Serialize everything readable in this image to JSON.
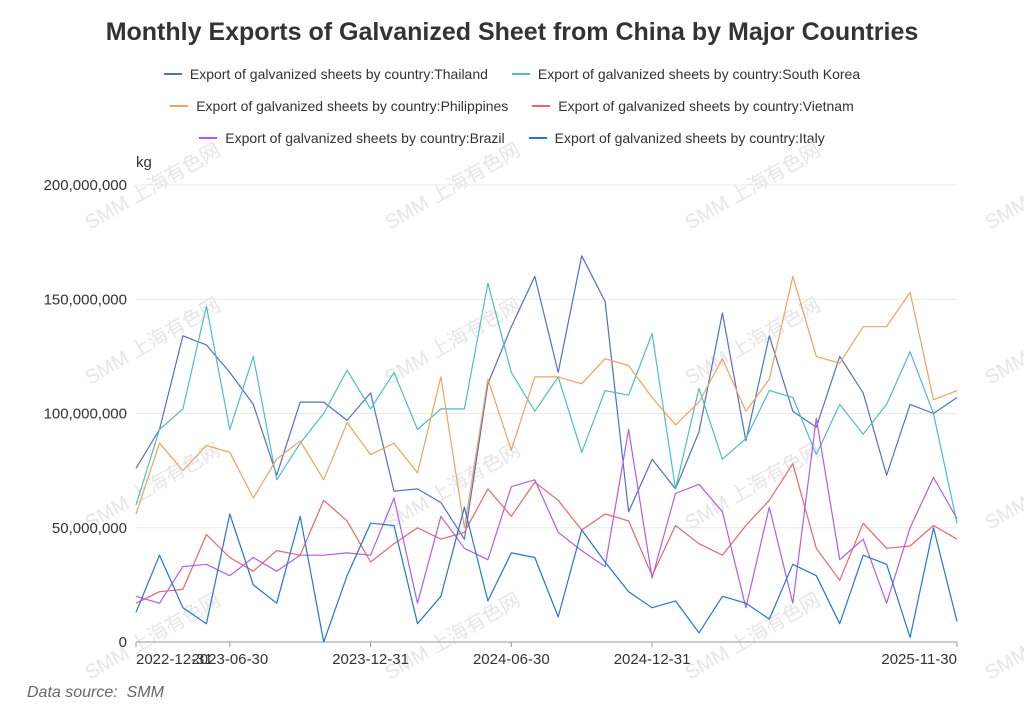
{
  "chart_data": {
    "type": "line",
    "title": "Monthly Exports of Galvanized Sheet from China by Major Countries",
    "ylabel": "kg",
    "ylim": [
      0,
      200000000
    ],
    "y_ticks": [
      "0",
      "50,000,000",
      "100,000,000",
      "150,000,000",
      "200,000,000"
    ],
    "y_tick_values": [
      0,
      50000000,
      100000000,
      150000000,
      200000000
    ],
    "x_tick_labels": [
      {
        "index": 0,
        "label": "2022-12-31"
      },
      {
        "index": 4,
        "label": "2023-06-30"
      },
      {
        "index": 10,
        "label": "2023-12-31"
      },
      {
        "index": 16,
        "label": "2024-06-30"
      },
      {
        "index": 22,
        "label": "2024-12-31"
      },
      {
        "index": 35,
        "label": "2025-11-30"
      }
    ],
    "x_count": 36,
    "grid": true,
    "legend_position": "top",
    "series": [
      {
        "name": "Export of galvanized sheets by country:Thailand",
        "color": "#5470c6",
        "values": [
          76,
          93,
          134,
          130,
          118,
          104,
          73,
          105,
          105,
          97,
          109,
          66,
          67,
          61,
          45,
          113,
          138,
          160,
          118,
          169,
          149,
          57,
          80,
          67,
          92,
          144,
          88,
          134,
          101,
          94,
          125,
          109,
          73,
          104,
          100,
          107
        ]
      },
      {
        "name": "Export of galvanized sheets by country:South Korea",
        "color": "#4dbfc2",
        "values": [
          60,
          93,
          102,
          147,
          93,
          125,
          71,
          87,
          100,
          119,
          102,
          118,
          93,
          102,
          102,
          157,
          118,
          101,
          116,
          83,
          110,
          108,
          135,
          67,
          111,
          80,
          89,
          110,
          107,
          82,
          104,
          91,
          104,
          127,
          100,
          52
        ]
      },
      {
        "name": "Export of galvanized sheets by country:Philippines",
        "color": "#f0a35f",
        "values": [
          56,
          87,
          75,
          86,
          83,
          63,
          80,
          88,
          71,
          96,
          82,
          87,
          74,
          116,
          50,
          115,
          84,
          116,
          116,
          113,
          124,
          121,
          107,
          95,
          105,
          124,
          101,
          115,
          160,
          125,
          122,
          138,
          138,
          153,
          106,
          110
        ]
      },
      {
        "name": "Export of galvanized sheets by country:Vietnam",
        "color": "#ee6666",
        "values": [
          17,
          22,
          23,
          47,
          37,
          31,
          40,
          38,
          62,
          53,
          35,
          43,
          50,
          45,
          48,
          67,
          55,
          70,
          62,
          49,
          56,
          53,
          29,
          51,
          43,
          38,
          51,
          62,
          78,
          41,
          27,
          52,
          41,
          42,
          51,
          45
        ]
      },
      {
        "name": "Export of galvanized sheets by country:Brazil",
        "color": "#b25ded",
        "values": [
          20,
          17,
          33,
          34,
          29,
          37,
          31,
          38,
          38,
          39,
          38,
          63,
          17,
          55,
          41,
          36,
          68,
          71,
          48,
          40,
          33,
          93,
          28,
          65,
          69,
          57,
          15,
          59,
          17,
          98,
          36,
          45,
          17,
          50,
          72,
          54
        ]
      },
      {
        "name": "Export of galvanized sheets by country:Italy",
        "color": "#2375e0",
        "values": [
          13,
          38,
          15,
          8,
          56,
          25,
          17,
          55,
          0,
          29,
          52,
          51,
          8,
          20,
          59,
          18,
          39,
          37,
          11,
          49,
          35,
          22,
          15,
          18,
          4,
          20,
          17,
          10,
          34,
          29,
          8,
          38,
          34,
          2,
          50,
          9
        ]
      }
    ],
    "value_multiplier": 1000000
  },
  "source_note": "Data source:  SMM",
  "watermark_text": "SMM 上海有色网"
}
